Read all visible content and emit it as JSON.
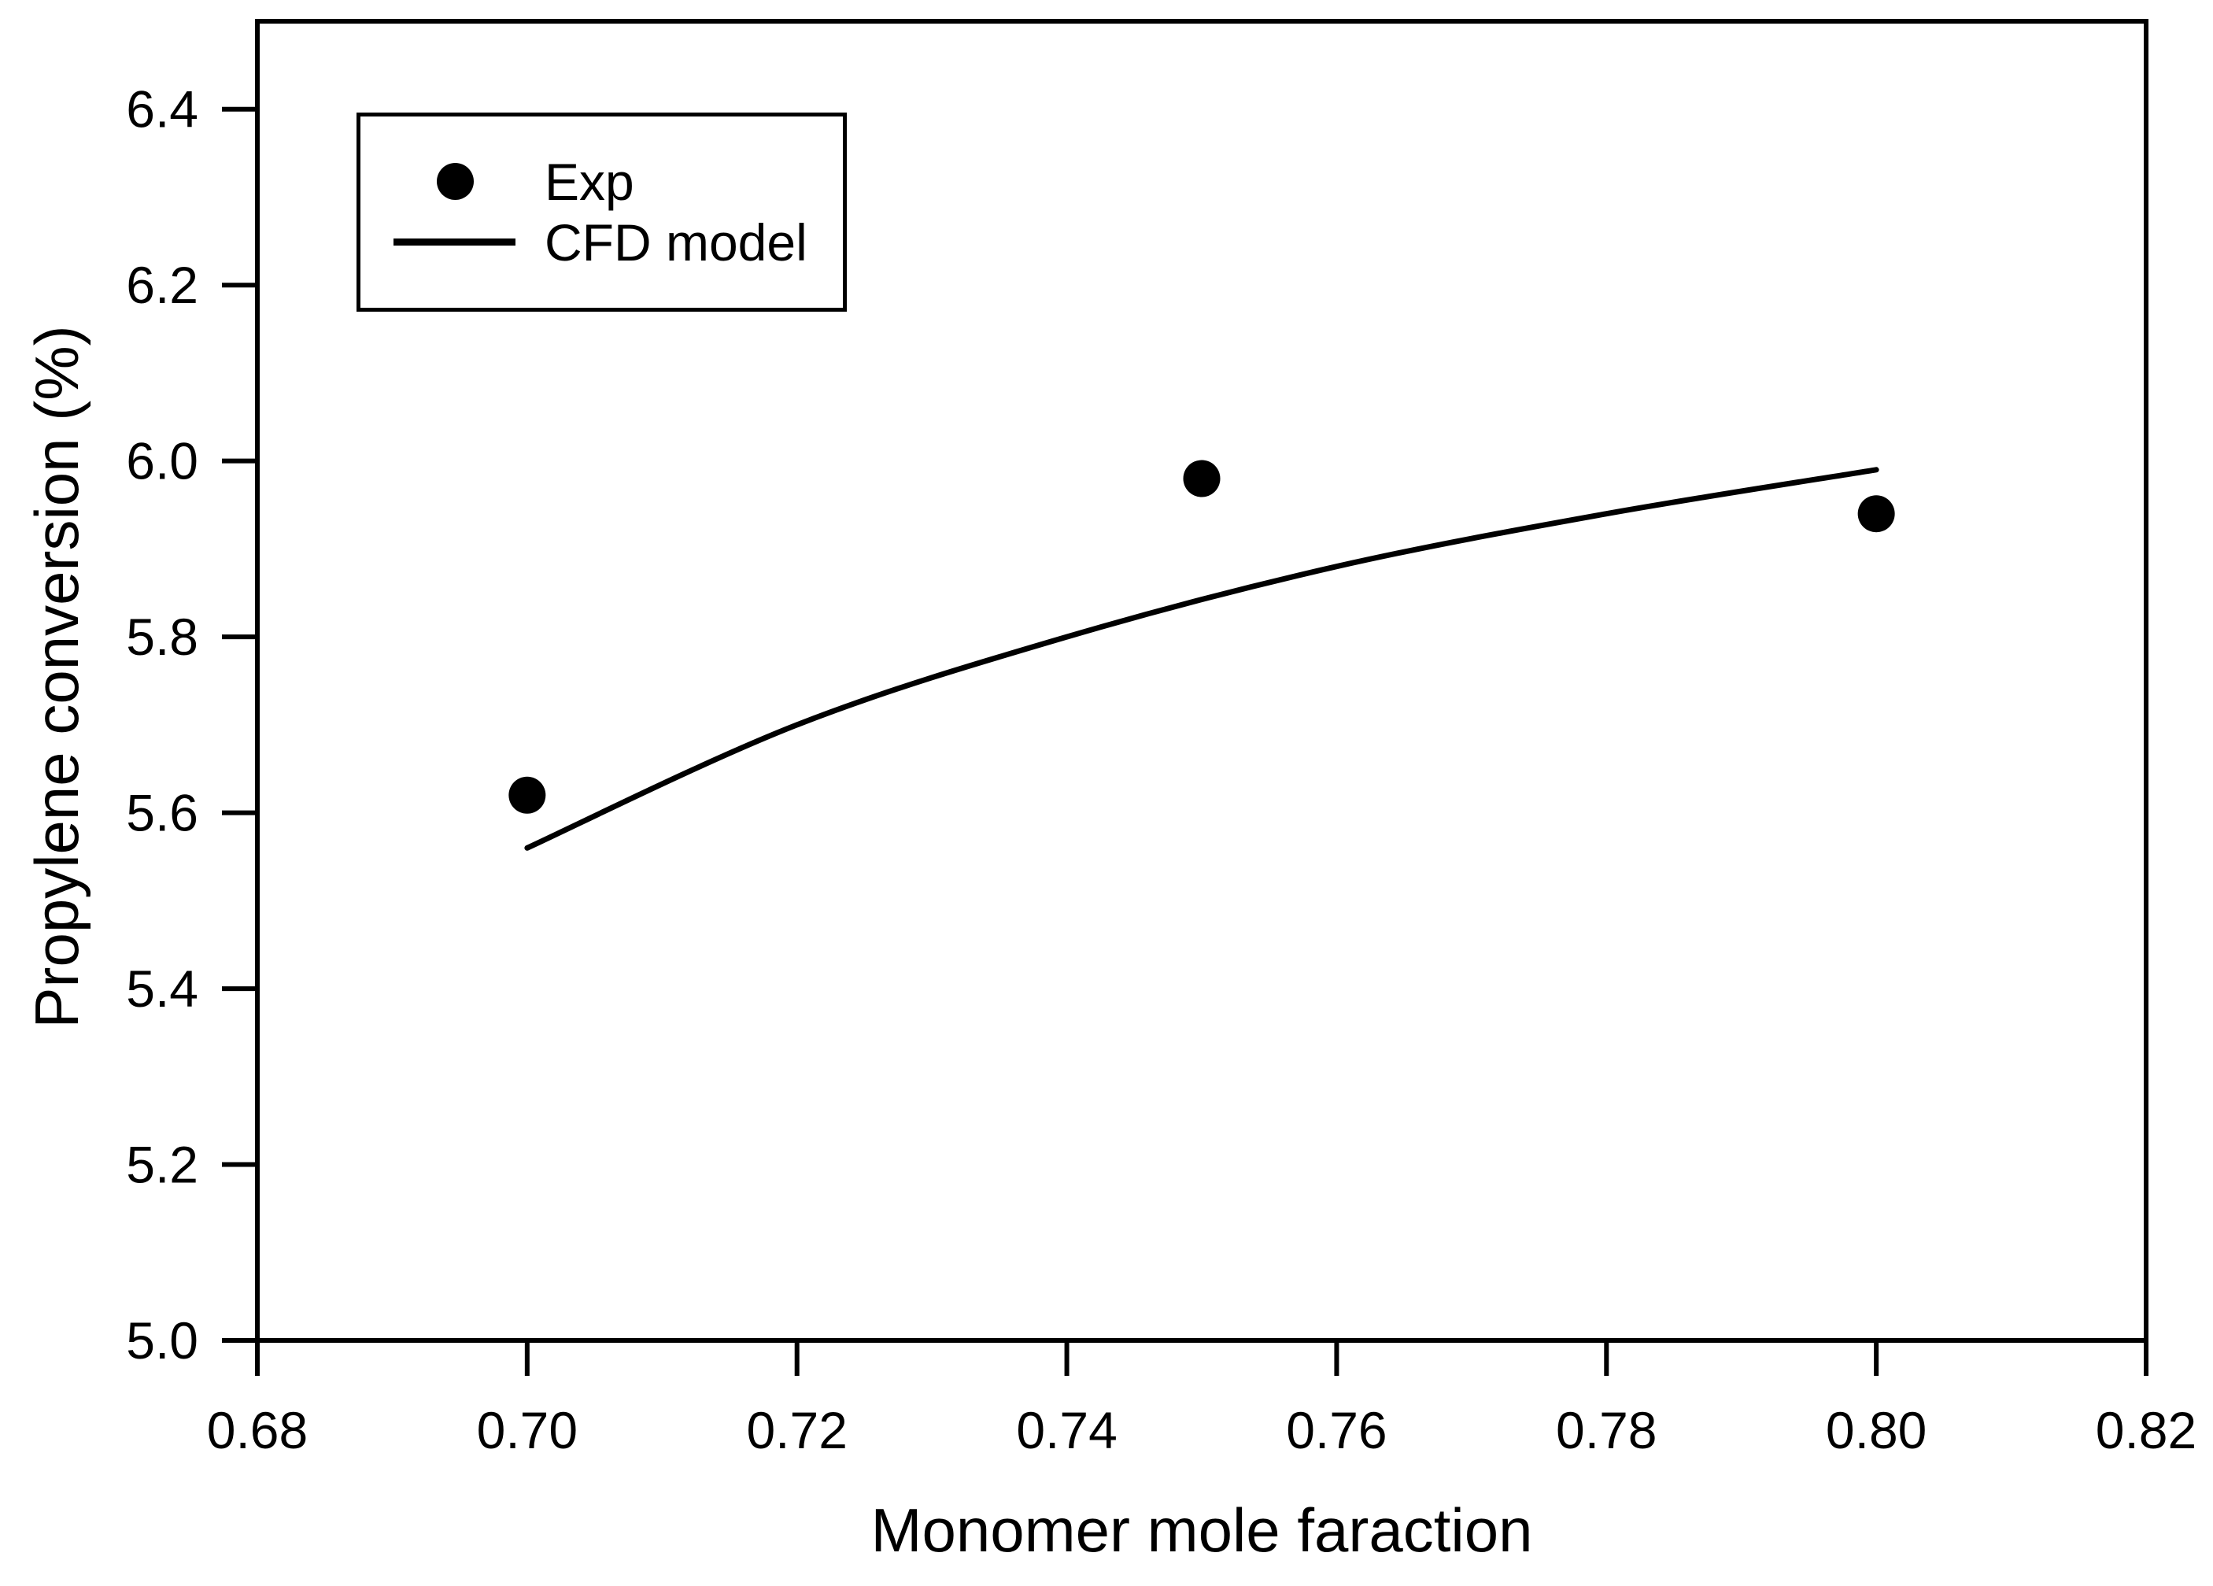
{
  "chart_data": {
    "type": "scatter",
    "title": "",
    "xlabel": "Monomer mole faraction",
    "ylabel": "Propylene conversion (%)",
    "xlim": [
      0.68,
      0.82
    ],
    "ylim": [
      5.0,
      6.5
    ],
    "xticks": [
      0.68,
      0.7,
      0.72,
      0.74,
      0.76,
      0.78,
      0.8,
      0.82
    ],
    "xtick_labels": [
      "0.68",
      "0.70",
      "0.72",
      "0.74",
      "0.76",
      "0.78",
      "0.80",
      "0.82"
    ],
    "yticks": [
      5.0,
      5.2,
      5.4,
      5.6,
      5.8,
      6.0,
      6.2,
      6.4
    ],
    "ytick_labels": [
      "5.0",
      "5.2",
      "5.4",
      "5.6",
      "5.8",
      "6.0",
      "6.2",
      "6.4"
    ],
    "grid": false,
    "legend_position": "top-left",
    "background_color": "#ffffff",
    "axis_color": "#000000",
    "series": [
      {
        "name": "Exp",
        "type": "scatter",
        "marker": "filled-circle",
        "color": "#000000",
        "x": [
          0.7,
          0.75,
          0.8
        ],
        "y": [
          5.62,
          5.98,
          5.94
        ]
      },
      {
        "name": "CFD model",
        "type": "line",
        "smooth": true,
        "color": "#000000",
        "x": [
          0.7,
          0.72,
          0.74,
          0.76,
          0.78,
          0.8
        ],
        "y": [
          5.56,
          5.7,
          5.8,
          5.88,
          5.94,
          5.99
        ]
      }
    ]
  }
}
